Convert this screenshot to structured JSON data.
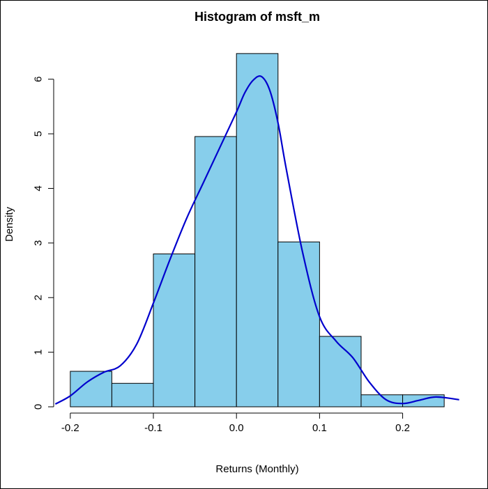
{
  "chart_data": {
    "type": "bar",
    "title": "Histogram of msft_m",
    "xlabel": "Returns (Monthly)",
    "ylabel": "Density",
    "xlim": [
      -0.22,
      0.27
    ],
    "ylim": [
      0,
      6.8
    ],
    "x_ticks": [
      -0.2,
      -0.1,
      0.0,
      0.1,
      0.2
    ],
    "x_tick_labels": [
      "-0.2",
      "-0.1",
      "0.0",
      "0.1",
      "0.2"
    ],
    "y_ticks": [
      0,
      1,
      2,
      3,
      4,
      5,
      6
    ],
    "y_tick_labels": [
      "0",
      "1",
      "2",
      "3",
      "4",
      "5",
      "6"
    ],
    "grid": false,
    "bar_color": "#87CEEB",
    "bar_edge_color": "#000000",
    "bins": [
      {
        "x0": -0.2,
        "x1": -0.15,
        "density": 0.65
      },
      {
        "x0": -0.15,
        "x1": -0.1,
        "density": 0.43
      },
      {
        "x0": -0.1,
        "x1": -0.05,
        "density": 2.8
      },
      {
        "x0": -0.05,
        "x1": 0.0,
        "density": 4.95
      },
      {
        "x0": 0.0,
        "x1": 0.05,
        "density": 6.47
      },
      {
        "x0": 0.05,
        "x1": 0.1,
        "density": 3.02
      },
      {
        "x0": 0.1,
        "x1": 0.15,
        "density": 1.29
      },
      {
        "x0": 0.15,
        "x1": 0.2,
        "density": 0.22
      },
      {
        "x0": 0.2,
        "x1": 0.25,
        "density": 0.22
      }
    ],
    "density_curve": {
      "color": "#0000CD",
      "x": [
        -0.218,
        -0.2,
        -0.18,
        -0.16,
        -0.14,
        -0.12,
        -0.1,
        -0.08,
        -0.06,
        -0.04,
        -0.02,
        0.0,
        0.01,
        0.02,
        0.03,
        0.04,
        0.05,
        0.06,
        0.08,
        0.1,
        0.12,
        0.14,
        0.16,
        0.18,
        0.2,
        0.22,
        0.24,
        0.268
      ],
      "y": [
        0.05,
        0.2,
        0.45,
        0.63,
        0.75,
        1.15,
        1.9,
        2.7,
        3.45,
        4.1,
        4.75,
        5.4,
        5.75,
        5.98,
        6.05,
        5.8,
        5.2,
        4.35,
        2.8,
        1.65,
        1.2,
        0.9,
        0.45,
        0.13,
        0.06,
        0.12,
        0.18,
        0.13
      ]
    }
  }
}
